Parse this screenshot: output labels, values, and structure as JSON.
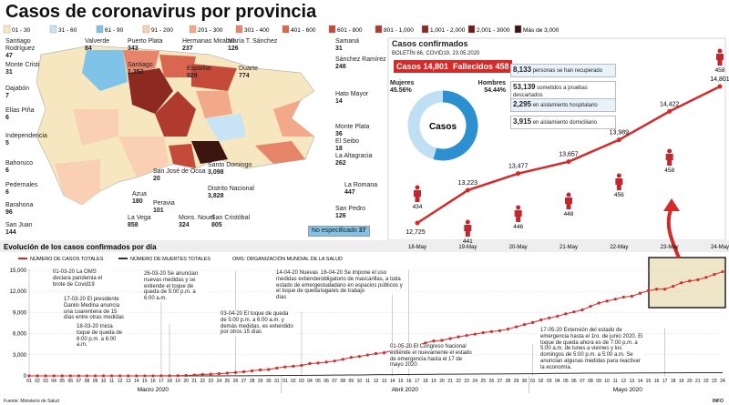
{
  "title": "Casos de coronavirus por provincia",
  "legend": [
    {
      "label": "01 - 30",
      "color": "#f6e7c1"
    },
    {
      "label": "31 - 60",
      "color": "#c7e3f4"
    },
    {
      "label": "61 - 90",
      "color": "#7fc3e8"
    },
    {
      "label": "91 - 200",
      "color": "#f9d0b4"
    },
    {
      "label": "201 - 300",
      "color": "#f2a98a"
    },
    {
      "label": "301 - 400",
      "color": "#e7856b"
    },
    {
      "label": "401 - 600",
      "color": "#d9664e"
    },
    {
      "label": "601 - 800",
      "color": "#c54a3a"
    },
    {
      "label": "801 - 1,000",
      "color": "#b03a2e"
    },
    {
      "label": "1,001 - 2,000",
      "color": "#8c2a22"
    },
    {
      "label": "2,001 - 3000",
      "color": "#6b1e19"
    },
    {
      "label": "Más de 3,000",
      "color": "#3c1410"
    }
  ],
  "provinces": [
    {
      "name": "Santiago Rodríguez",
      "value": "47"
    },
    {
      "name": "Monte Cristi",
      "value": "31"
    },
    {
      "name": "Dajabón",
      "value": "7"
    },
    {
      "name": "Elías Piña",
      "value": "6"
    },
    {
      "name": "Independencia",
      "value": "5"
    },
    {
      "name": "Bahoruco",
      "value": "6"
    },
    {
      "name": "Pedernales",
      "value": "6"
    },
    {
      "name": "Barahona",
      "value": "96"
    },
    {
      "name": "San Juan",
      "value": "144"
    },
    {
      "name": "Valverde",
      "value": "84"
    },
    {
      "name": "Puerto Plata",
      "value": "343"
    },
    {
      "name": "Santiago",
      "value": "1,352"
    },
    {
      "name": "Hermanas Mirabal",
      "value": "237"
    },
    {
      "name": "María T. Sánchez",
      "value": "126"
    },
    {
      "name": "Espaillat",
      "value": "529"
    },
    {
      "name": "Duarte",
      "value": "774"
    },
    {
      "name": "Samaná",
      "value": "31"
    },
    {
      "name": "Sánchez Ramírez",
      "value": "248"
    },
    {
      "name": "Hato Mayor",
      "value": "14"
    },
    {
      "name": "Monte Plata",
      "value": "36"
    },
    {
      "name": "El Seibo",
      "value": "18"
    },
    {
      "name": "La Altagracia",
      "value": "262"
    },
    {
      "name": "La Romana",
      "value": "447"
    },
    {
      "name": "San Pedro",
      "value": "126"
    },
    {
      "name": "Santo Domingo",
      "value": "3,098"
    },
    {
      "name": "Distrito Nacional",
      "value": "3,828"
    },
    {
      "name": "San Cristóbal",
      "value": "805"
    },
    {
      "name": "Azua",
      "value": "180"
    },
    {
      "name": "San José de Ocoa",
      "value": "20"
    },
    {
      "name": "Peravia",
      "value": "101"
    },
    {
      "name": "Mons. Nouel",
      "value": "324"
    },
    {
      "name": "La Vega",
      "value": "858"
    }
  ],
  "not_specified": {
    "label": "No especificado",
    "value": "37"
  },
  "summary": {
    "title": "Casos confirmados",
    "bulletin": "BOLETÍN 66, COVID19, 23.05.2020",
    "cases": {
      "label": "Casos",
      "value": "14,801"
    },
    "deaths": {
      "label": "Fallecidos",
      "value": "458"
    },
    "sex": [
      {
        "label": "Mujeres",
        "value": 45.56,
        "value_label": "45.56%",
        "color": "#bfe0f3"
      },
      {
        "label": "Hombres",
        "value": 54.44,
        "value_label": "54.44%",
        "color": "#2b8fd0"
      }
    ],
    "stats": [
      {
        "value": "8,133",
        "text": "personas se han recuperado"
      },
      {
        "value": "53,139",
        "text": "sometidos a pruebas descartados"
      },
      {
        "value": "2,295",
        "text": "en aislamiento hospitalario"
      },
      {
        "value": "3,915",
        "text": "en aislamiento domiciliario"
      }
    ]
  },
  "chart_data": [
    {
      "type": "line",
      "categories": [
        "18-May",
        "19-May",
        "20-May",
        "21-May",
        "22-May",
        "23-May",
        "24-May"
      ],
      "series": [
        {
          "color": "#d42a2a",
          "values": [
            12725,
            13223,
            13477,
            13657,
            13989,
            14422,
            14801
          ],
          "value_labels": [
            "12,725",
            "13,223",
            "13,477",
            "13,657",
            "13,989",
            "14,422",
            "14,801"
          ]
        },
        {
          "color": "#c1272d",
          "values": [
            434,
            441,
            446,
            448,
            456,
            458,
            458
          ]
        }
      ]
    },
    {
      "type": "line",
      "title": "Evolución de los casos confirmados por día",
      "categories": [
        "01",
        "02",
        "03",
        "04",
        "05",
        "06",
        "07",
        "08",
        "09",
        "10",
        "11",
        "12",
        "13",
        "14",
        "15",
        "16",
        "17",
        "18",
        "19",
        "20",
        "21",
        "22",
        "23",
        "24",
        "25",
        "26",
        "27",
        "28",
        "29",
        "30",
        "31",
        "01",
        "02",
        "03",
        "04",
        "05",
        "06",
        "07",
        "08",
        "09",
        "10",
        "11",
        "12",
        "13",
        "14",
        "15",
        "16",
        "17",
        "18",
        "19",
        "20",
        "21",
        "22",
        "23",
        "24",
        "25",
        "26",
        "27",
        "28",
        "29",
        "30",
        "01",
        "02",
        "03",
        "04",
        "05",
        "06",
        "07",
        "08",
        "09",
        "10",
        "11",
        "12",
        "13",
        "14",
        "15",
        "16",
        "17",
        "18",
        "19",
        "20",
        "21",
        "22",
        "23",
        "24"
      ],
      "months": [
        "Marzo 2020",
        "Abril 2020",
        "Mayo 2020"
      ],
      "series": [
        {
          "name": "NÚMERO DE CASOS TOTALES",
          "color": "#d42a2a",
          "values": [
            1,
            1,
            1,
            1,
            1,
            1,
            1,
            5,
            5,
            5,
            5,
            5,
            5,
            5,
            11,
            11,
            21,
            21,
            34,
            72,
            112,
            202,
            245,
            312,
            392,
            488,
            581,
            719,
            859,
            901,
            1109,
            1284,
            1380,
            1488,
            1745,
            1828,
            1956,
            2111,
            2349,
            2620,
            2759,
            2967,
            3167,
            3286,
            3614,
            3755,
            4126,
            4335,
            4680,
            4964,
            5044,
            5300,
            5543,
            5749,
            5926,
            6135,
            6293,
            6416,
            6652,
            6972,
            7288,
            7578,
            7954,
            8235,
            8480,
            8807,
            9095,
            9376,
            9882,
            10347,
            10634,
            10900,
            11196,
            11320,
            11739,
            12110,
            12314,
            12314,
            12725,
            13223,
            13477,
            13657,
            13989,
            14422,
            14801
          ]
        },
        {
          "name": "NÚMERO DE MUERTES TOTALES",
          "color": "#333333",
          "values": [
            0,
            0,
            0,
            0,
            0,
            0,
            0,
            0,
            0,
            0,
            0,
            0,
            0,
            0,
            0,
            1,
            1,
            2,
            2,
            2,
            3,
            3,
            6,
            6,
            10,
            10,
            20,
            28,
            39,
            42,
            51,
            57,
            60,
            68,
            82,
            86,
            98,
            108,
            118,
            126,
            135,
            146,
            173,
            177,
            183,
            196,
            200,
            209,
            217,
            226,
            235,
            241,
            250,
            260,
            265,
            273,
            278,
            282,
            286,
            293,
            301,
            313,
            326,
            346,
            354,
            362,
            373,
            380,
            385,
            388,
            393,
            394,
            398,
            409,
            424,
            428,
            428,
            429,
            434,
            441,
            446,
            448,
            456,
            458,
            458
          ]
        }
      ],
      "legend_note": "OMS: ORGANIZACIÓN MUNDIAL DE LA SALUD",
      "ylim": [
        0,
        15000
      ],
      "yticks": [
        0,
        {
          "value": 3000,
          "label": "3,000"
        },
        {
          "value": 6000,
          "label": "6,000"
        },
        {
          "value": 9000,
          "label": "9,000"
        },
        {
          "value": 12000,
          "label": "12,000"
        },
        {
          "value": 15000,
          "label": "15,000"
        }
      ],
      "grid": true,
      "annotations": [
        "01-03-20 La OMS declara pandemia el brote de Covid19",
        "17-03-20 El presidente Danilo Medina anuncia una cuarentena de 15 días entre otras medidas",
        "18-03-20 Inicia toque de queda de 8:00 p.m. a 6:00 a.m.",
        "26-03-20 Se anuncian nuevas medidas y se extiende el toque de queda de 5:00 p.m. a 6:00 a.m.",
        "03-04-20 El toque de queda de 5:00 p.m. a 6:00 a.m. y demás medidas, es extendido por otros 15 días",
        "14-04-20 Nuevas medidas extienden el estado de emergencia y el toque de queda por 17 días",
        "16-04-20 Se impone el uso obligatorio de mascarillas, a toda ciudadano en espacios públicos y lugares de trabajo",
        "01-05-20 El Congreso Nacional extiende el nuevamente el estado de emergencia hasta el 17 de mayo 2020",
        "17-05-20 Extensión del estado de emergencia hasta el 1ro. de junio 2020. El toque de queda ahora es de 7:00 p.m. a 5:00 a.m. de lunes a viernes y los domingos de 5:00 p.m. a 5:00 a.m. Se anuncian algunas medidas para reactivar la economía."
      ]
    }
  ],
  "source": "Fuente: Ministerio de Salud",
  "brand": "INFO"
}
